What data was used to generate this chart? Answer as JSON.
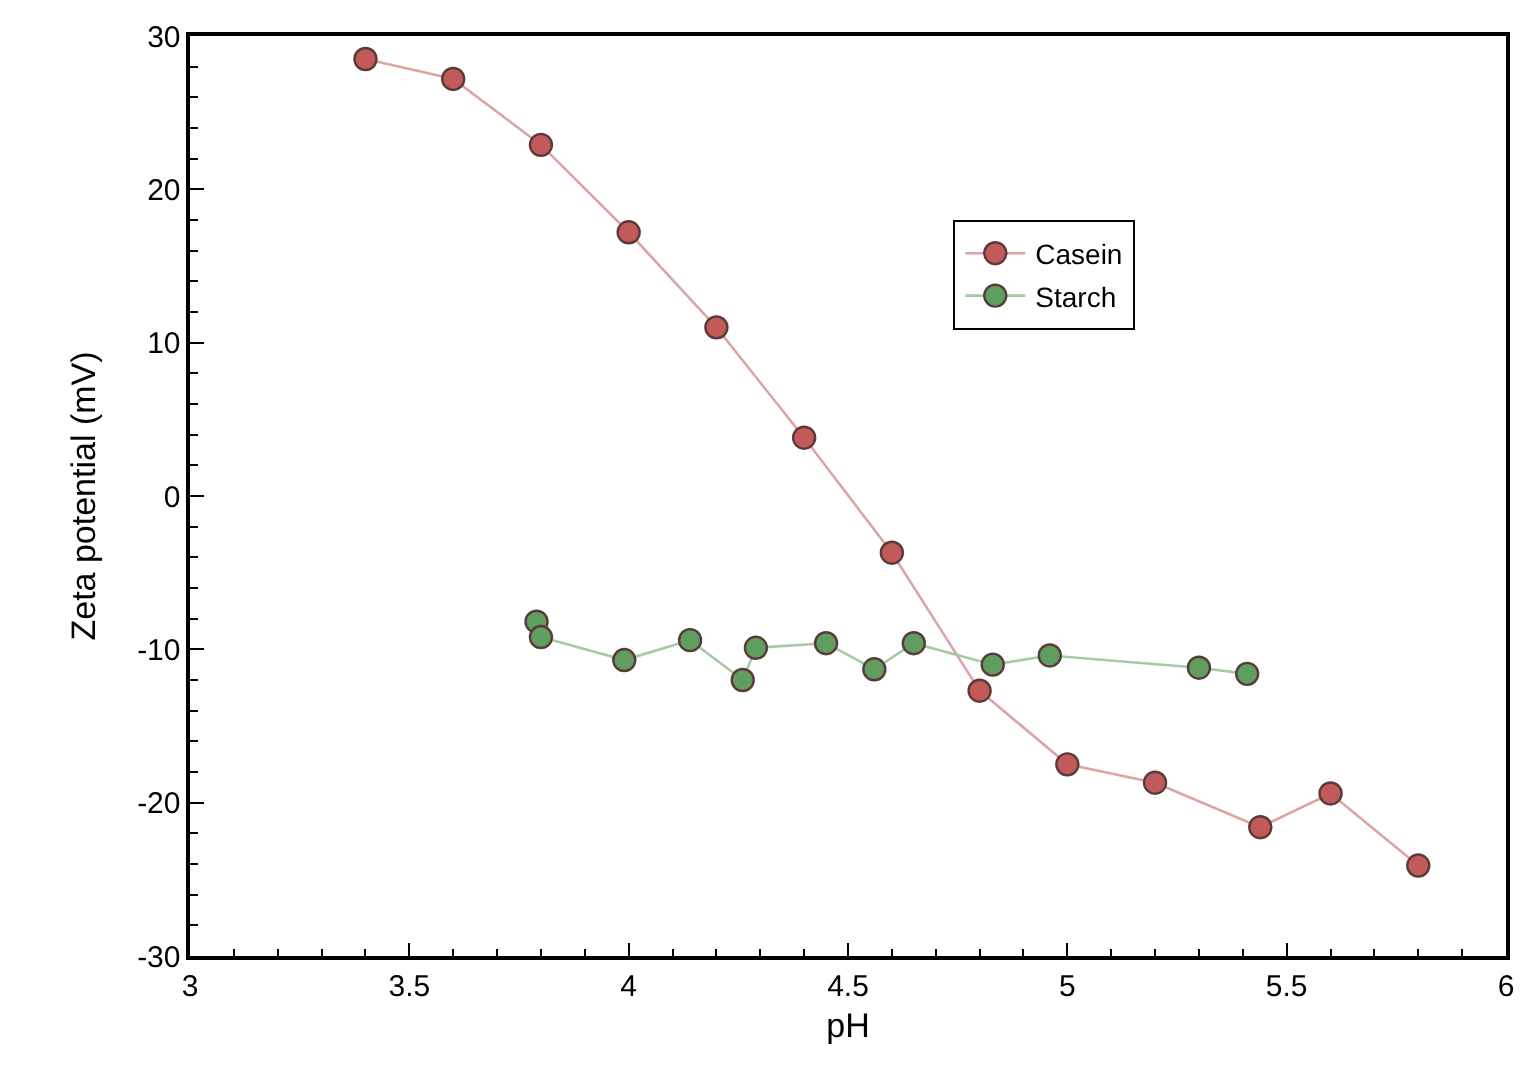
{
  "chart_data": {
    "type": "line",
    "xlabel": "pH",
    "ylabel": "Zeta potential (mV)",
    "xlim": [
      3,
      6
    ],
    "xticks": [
      3,
      3.5,
      4,
      4.5,
      5,
      5.5,
      6
    ],
    "ylim": [
      -30,
      30
    ],
    "yticks": [
      -30,
      -20,
      -10,
      0,
      10,
      20,
      30
    ],
    "legend": "top right",
    "marker": "circle",
    "line_style": "solid",
    "series": [
      {
        "name": "Casein",
        "color": "#c25a5a",
        "x": [
          3.4,
          3.6,
          3.8,
          4.0,
          4.2,
          4.4,
          4.6,
          4.8,
          5.0,
          5.2,
          5.44,
          5.6,
          5.8
        ],
        "values": [
          28.5,
          27.2,
          22.9,
          17.2,
          11.0,
          3.8,
          -3.7,
          -12.7,
          -17.5,
          -18.7,
          -21.6,
          -19.4,
          -24.1
        ]
      },
      {
        "name": "Starch",
        "color": "#5f9e5f",
        "x": [
          3.79,
          3.8,
          3.99,
          4.14,
          4.26,
          4.29,
          4.45,
          4.56,
          4.65,
          4.83,
          4.96,
          5.3,
          5.41
        ],
        "values": [
          -8.2,
          -9.2,
          -10.7,
          -9.4,
          -12.0,
          -9.9,
          -9.6,
          -11.3,
          -9.6,
          -11.0,
          -10.4,
          -11.2,
          -11.6
        ]
      }
    ]
  }
}
